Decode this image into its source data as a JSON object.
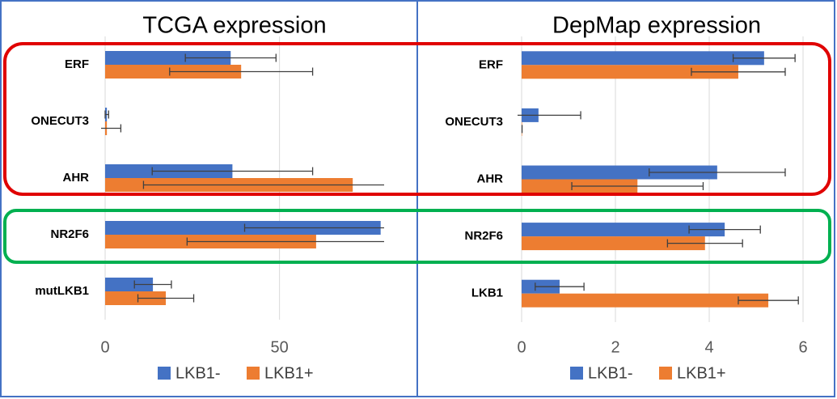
{
  "chart_data": [
    {
      "type": "bar",
      "title": "TCGA expression",
      "categories": [
        "ERF",
        "ONECUT3",
        "AHR",
        "NR2F6",
        "mutLKB1"
      ],
      "series": [
        {
          "name": "LKB1-",
          "color": "#4472c4",
          "values": [
            36,
            0.5,
            36.5,
            79,
            13.7
          ],
          "errors": [
            13,
            0.5,
            23,
            39,
            5.3
          ]
        },
        {
          "name": "LKB1+",
          "color": "#ed7d31",
          "values": [
            39,
            0.5,
            71,
            60.5,
            17.4
          ],
          "errors": [
            20.5,
            4,
            60,
            37,
            8
          ]
        }
      ],
      "xlim": [
        0,
        80
      ],
      "xticks": [
        0,
        50
      ],
      "grid": true
    },
    {
      "type": "bar",
      "title": "DepMap expression",
      "categories": [
        "ERF",
        "ONECUT3",
        "AHR",
        "NR2F6",
        "LKB1"
      ],
      "series": [
        {
          "name": "LKB1-",
          "color": "#4472c4",
          "values": [
            5.17,
            0.36,
            4.17,
            4.33,
            0.81
          ],
          "errors": [
            0.66,
            0.9,
            1.45,
            0.76,
            0.52
          ]
        },
        {
          "name": "LKB1+",
          "color": "#ed7d31",
          "values": [
            4.62,
            0.01,
            2.47,
            3.91,
            5.26
          ],
          "errors": [
            1.0,
            0,
            1.4,
            0.8,
            0.64
          ]
        }
      ],
      "xlim": [
        0,
        6
      ],
      "xticks": [
        0,
        2,
        4,
        6
      ],
      "grid": true
    }
  ]
}
